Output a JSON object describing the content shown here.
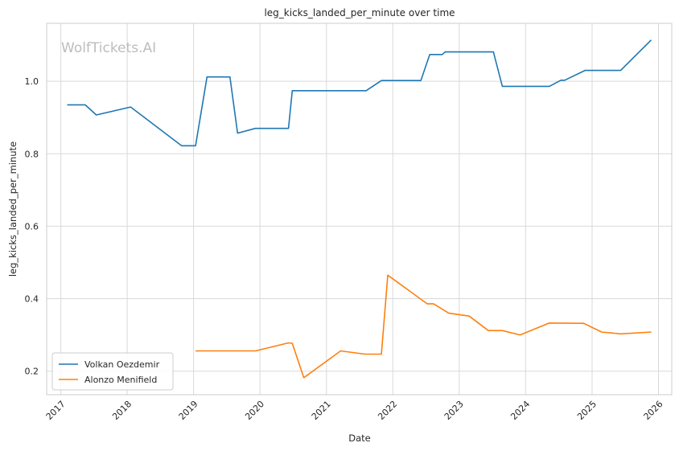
{
  "chart_data": {
    "type": "line",
    "title": "leg_kicks_landed_per_minute over time",
    "xlabel": "Date",
    "ylabel": "leg_kicks_landed_per_minute",
    "watermark": "WolfTickets.AI",
    "xlim": [
      "2016-10-15",
      "2026-03-15"
    ],
    "ylim": [
      0.135,
      1.16
    ],
    "x_ticks": [
      "2017",
      "2018",
      "2019",
      "2020",
      "2021",
      "2022",
      "2023",
      "2024",
      "2025",
      "2026"
    ],
    "y_ticks": [
      0.2,
      0.4,
      0.6,
      0.8,
      1.0
    ],
    "y_tick_labels": [
      "0.2",
      "0.4",
      "0.6",
      "0.8",
      "1.0"
    ],
    "grid": true,
    "legend_position": "lower-left",
    "series": [
      {
        "name": "Volkan Oezdemir",
        "color": "#1f77b4",
        "points": [
          [
            "2017-02-05",
            0.935
          ],
          [
            "2017-05-15",
            0.935
          ],
          [
            "2017-07-15",
            0.907
          ],
          [
            "2018-01-20",
            0.929
          ],
          [
            "2018-10-27",
            0.822
          ],
          [
            "2019-01-12",
            0.822
          ],
          [
            "2019-03-16",
            1.012
          ],
          [
            "2019-07-20",
            1.012
          ],
          [
            "2019-08-31",
            0.857
          ],
          [
            "2019-12-07",
            0.87
          ],
          [
            "2020-06-06",
            0.87
          ],
          [
            "2020-06-27",
            0.974
          ],
          [
            "2021-08-07",
            0.974
          ],
          [
            "2021-10-30",
            1.002
          ],
          [
            "2022-06-04",
            1.002
          ],
          [
            "2022-07-23",
            1.074
          ],
          [
            "2022-09-30",
            1.074
          ],
          [
            "2022-10-15",
            1.081
          ],
          [
            "2023-07-08",
            1.081
          ],
          [
            "2023-08-26",
            0.986
          ],
          [
            "2024-05-11",
            0.986
          ],
          [
            "2024-07-13",
            1.003
          ],
          [
            "2024-08-03",
            1.003
          ],
          [
            "2024-11-23",
            1.03
          ],
          [
            "2025-06-07",
            1.03
          ],
          [
            "2025-11-22",
            1.114
          ]
        ]
      },
      {
        "name": "Alonzo Menifield",
        "color": "#ff7f0e",
        "points": [
          [
            "2019-01-12",
            0.256
          ],
          [
            "2019-12-07",
            0.256
          ],
          [
            "2020-06-06",
            0.278
          ],
          [
            "2020-06-27",
            0.277
          ],
          [
            "2020-08-29",
            0.182
          ],
          [
            "2021-03-20",
            0.256
          ],
          [
            "2021-07-31",
            0.247
          ],
          [
            "2021-10-30",
            0.247
          ],
          [
            "2021-12-04",
            0.465
          ],
          [
            "2022-07-09",
            0.386
          ],
          [
            "2022-08-13",
            0.386
          ],
          [
            "2022-11-05",
            0.36
          ],
          [
            "2023-02-25",
            0.352
          ],
          [
            "2023-06-10",
            0.312
          ],
          [
            "2023-08-26",
            0.312
          ],
          [
            "2023-12-02",
            0.3
          ],
          [
            "2024-05-11",
            0.333
          ],
          [
            "2024-11-16",
            0.332
          ],
          [
            "2025-02-22",
            0.308
          ],
          [
            "2025-06-07",
            0.303
          ],
          [
            "2025-11-22",
            0.308
          ]
        ]
      }
    ]
  }
}
